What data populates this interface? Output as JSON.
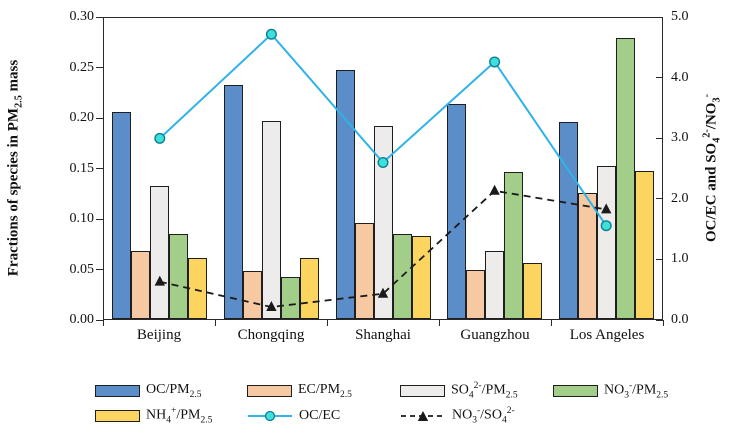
{
  "chart_data": {
    "type": "combo-bar-line",
    "title": "",
    "categories": [
      "Beijing",
      "Chongqing",
      "Shanghai",
      "Guangzhou",
      "Los Angeles"
    ],
    "bar_series": [
      {
        "id": "oc",
        "label_text": "OC/PM2.5",
        "label_html": "OC/PM<sub>2.5</sub>",
        "color": "#5B8DC9",
        "values": [
          0.206,
          0.233,
          0.248,
          0.214,
          0.196
        ]
      },
      {
        "id": "ec",
        "label_text": "EC/PM2.5",
        "label_html": "EC/PM<sub>2.5</sub>",
        "color": "#F7C9A3",
        "values": [
          0.068,
          0.048,
          0.096,
          0.049,
          0.126
        ]
      },
      {
        "id": "so4",
        "label_text": "SO42-/PM2.5",
        "label_html": "SO<sub>4</sub><sup>2-</sup>/PM<sub>2.5</sub>",
        "color": "#EDECEA",
        "values": [
          0.133,
          0.197,
          0.192,
          0.068,
          0.152
        ]
      },
      {
        "id": "no3",
        "label_text": "NO3-/PM2.5",
        "label_html": "NO<sub>3</sub><sup>-</sup>/PM<sub>2.5</sub>",
        "color": "#A3CE89",
        "values": [
          0.085,
          0.042,
          0.085,
          0.147,
          0.28
        ]
      },
      {
        "id": "nh4",
        "label_text": "NH4+/PM2.5",
        "label_html": "NH<sub>4</sub><sup>+</sup>/PM<sub>2.5</sub>",
        "color": "#FBD55F",
        "values": [
          0.061,
          0.061,
          0.083,
          0.056,
          0.148
        ]
      }
    ],
    "line_series": [
      {
        "id": "oc-ec",
        "label_text": "OC/EC",
        "label_html": "OC/EC",
        "color": "#2FB3E8",
        "dashed": false,
        "marker": "circle",
        "marker_fill": "#3EE0DB",
        "marker_stroke": "#0C7F93",
        "values": [
          3.0,
          4.73,
          2.6,
          4.27,
          1.55
        ]
      },
      {
        "id": "no3-so4",
        "label_text": "NO3-/SO42-",
        "label_html": "NO<sub>3</sub><sup>-</sup>/SO<sub>4</sub><sup>2-</sup>",
        "color": "#1a1a1a",
        "dashed": true,
        "marker": "triangle",
        "marker_fill": "#1a1a1a",
        "marker_stroke": "#1a1a1a",
        "values": [
          0.62,
          0.2,
          0.42,
          2.13,
          1.82
        ]
      }
    ],
    "left_axis": {
      "title_text": "Fractions of species in PM2.5 mass",
      "title_html": "Fractions of species in PM<sub>2.5</sub> mass",
      "min": 0,
      "max": 0.3,
      "step": 0.05,
      "tick_labels": [
        "0.00",
        "0.05",
        "0.10",
        "0.15",
        "0.20",
        "0.25",
        "0.30"
      ]
    },
    "right_axis": {
      "title_text": "OC/EC and SO42-/NO3-",
      "title_html": "OC/EC and SO<sub>4</sub><sup>2-</sup>/NO<sub>3</sub><sup>-</sup>",
      "min": 0,
      "max": 5.0,
      "step": 1.0,
      "tick_labels": [
        "0.0",
        "1.0",
        "2.0",
        "3.0",
        "4.0",
        "5.0"
      ]
    },
    "grid": false,
    "legend_position": "bottom",
    "legend_rows": [
      [
        "oc",
        "ec",
        "so4",
        "no3"
      ],
      [
        "nh4",
        "oc-ec",
        "no3-so4"
      ]
    ]
  }
}
